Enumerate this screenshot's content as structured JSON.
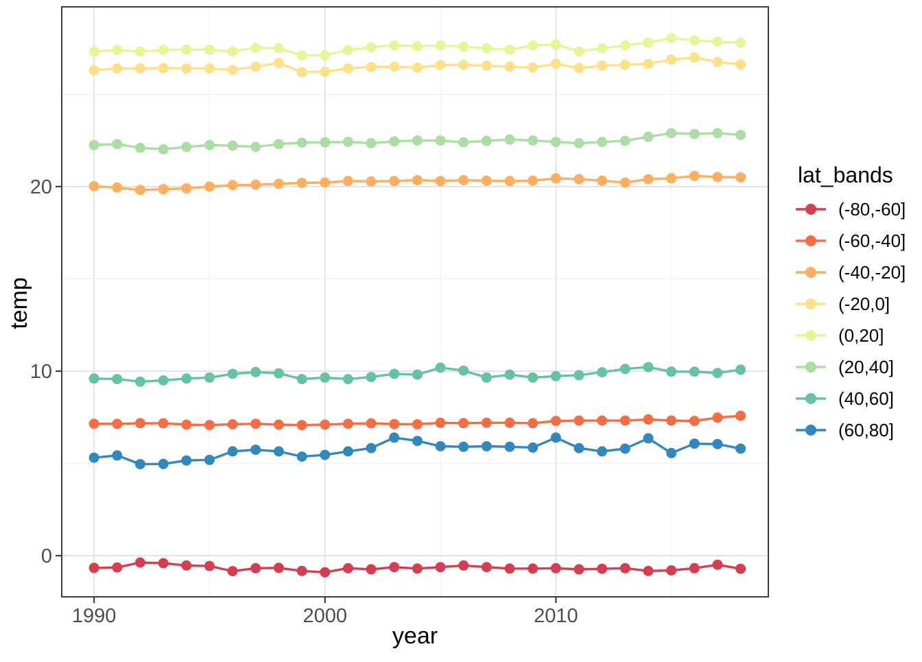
{
  "figure": {
    "x_axis_title": "year",
    "y_axis_title": "temp",
    "legend_title": "lat_bands"
  },
  "chart_data": {
    "type": "line",
    "title": "",
    "xlabel": "year",
    "ylabel": "temp",
    "legend_title": "lat_bands",
    "legend_position": "right",
    "grid": true,
    "marker": "point",
    "x": [
      1990,
      1991,
      1992,
      1993,
      1994,
      1995,
      1996,
      1997,
      1998,
      1999,
      2000,
      2001,
      2002,
      2003,
      2004,
      2005,
      2006,
      2007,
      2008,
      2009,
      2010,
      2011,
      2012,
      2013,
      2014,
      2015,
      2016,
      2017,
      2018
    ],
    "xlim": [
      1988.6,
      2019.2
    ],
    "ylim": [
      -2.23,
      29.74
    ],
    "x_major_ticks": [
      1990,
      2000,
      2010
    ],
    "x_minor_ticks": [
      1995,
      2005,
      2015
    ],
    "y_major_ticks": [
      0,
      10,
      20
    ],
    "y_minor_ticks": [
      5,
      15,
      25
    ],
    "tick_label_color": "#4d4d4d",
    "grid_major_color": "#e3e3e3",
    "grid_minor_color": "#f0f0f0",
    "panel_border_color": "#3d3d3d",
    "series": [
      {
        "name": "(-80,-60]",
        "color": "#D53E4F",
        "values": [
          -0.66,
          -0.64,
          -0.37,
          -0.41,
          -0.53,
          -0.56,
          -0.84,
          -0.68,
          -0.66,
          -0.83,
          -0.9,
          -0.68,
          -0.74,
          -0.62,
          -0.7,
          -0.62,
          -0.53,
          -0.62,
          -0.7,
          -0.7,
          -0.68,
          -0.74,
          -0.71,
          -0.68,
          -0.83,
          -0.8,
          -0.68,
          -0.49,
          -0.71
        ]
      },
      {
        "name": "(-60,-40]",
        "color": "#F46D43",
        "values": [
          7.15,
          7.14,
          7.18,
          7.17,
          7.1,
          7.08,
          7.12,
          7.15,
          7.1,
          7.08,
          7.1,
          7.15,
          7.17,
          7.13,
          7.12,
          7.2,
          7.18,
          7.2,
          7.2,
          7.18,
          7.3,
          7.32,
          7.32,
          7.32,
          7.38,
          7.32,
          7.3,
          7.48,
          7.58
        ]
      },
      {
        "name": "(-40,-20]",
        "color": "#FDAE61",
        "values": [
          20.02,
          19.95,
          19.82,
          19.86,
          19.9,
          20.0,
          20.08,
          20.1,
          20.15,
          20.2,
          20.22,
          20.3,
          20.28,
          20.3,
          20.35,
          20.3,
          20.35,
          20.32,
          20.3,
          20.32,
          20.45,
          20.4,
          20.32,
          20.22,
          20.4,
          20.45,
          20.58,
          20.52,
          20.5
        ]
      },
      {
        "name": "(-20,0]",
        "color": "#FEE08B",
        "values": [
          26.3,
          26.4,
          26.4,
          26.42,
          26.4,
          26.4,
          26.32,
          26.5,
          26.7,
          26.2,
          26.22,
          26.4,
          26.48,
          26.5,
          26.45,
          26.58,
          26.6,
          26.55,
          26.5,
          26.45,
          26.65,
          26.42,
          26.55,
          26.6,
          26.65,
          26.88,
          27.0,
          26.75,
          26.62
        ]
      },
      {
        "name": "(0,20]",
        "color": "#E6F598",
        "values": [
          27.32,
          27.4,
          27.32,
          27.4,
          27.42,
          27.42,
          27.32,
          27.52,
          27.5,
          27.1,
          27.12,
          27.4,
          27.55,
          27.65,
          27.6,
          27.65,
          27.58,
          27.5,
          27.42,
          27.65,
          27.7,
          27.32,
          27.5,
          27.65,
          27.8,
          28.05,
          27.92,
          27.85,
          27.8
        ]
      },
      {
        "name": "(20,40]",
        "color": "#ABDDA4",
        "values": [
          22.25,
          22.3,
          22.1,
          22.02,
          22.15,
          22.25,
          22.22,
          22.15,
          22.3,
          22.38,
          22.4,
          22.42,
          22.35,
          22.45,
          22.5,
          22.5,
          22.4,
          22.48,
          22.55,
          22.5,
          22.42,
          22.35,
          22.42,
          22.48,
          22.7,
          22.9,
          22.85,
          22.9,
          22.8
        ]
      },
      {
        "name": "(40,60]",
        "color": "#66C2A5",
        "values": [
          9.6,
          9.57,
          9.43,
          9.5,
          9.6,
          9.65,
          9.85,
          9.95,
          9.88,
          9.57,
          9.65,
          9.57,
          9.68,
          9.85,
          9.81,
          10.19,
          10.03,
          9.65,
          9.81,
          9.65,
          9.73,
          9.78,
          9.94,
          10.12,
          10.22,
          9.97,
          9.97,
          9.9,
          10.08
        ]
      },
      {
        "name": "(60,80]",
        "color": "#3288BD",
        "values": [
          5.31,
          5.43,
          4.96,
          4.97,
          5.16,
          5.19,
          5.65,
          5.74,
          5.65,
          5.37,
          5.46,
          5.65,
          5.83,
          6.4,
          6.22,
          5.93,
          5.9,
          5.93,
          5.9,
          5.86,
          6.4,
          5.83,
          5.65,
          5.8,
          6.36,
          5.56,
          6.07,
          6.05,
          5.8
        ]
      }
    ]
  }
}
